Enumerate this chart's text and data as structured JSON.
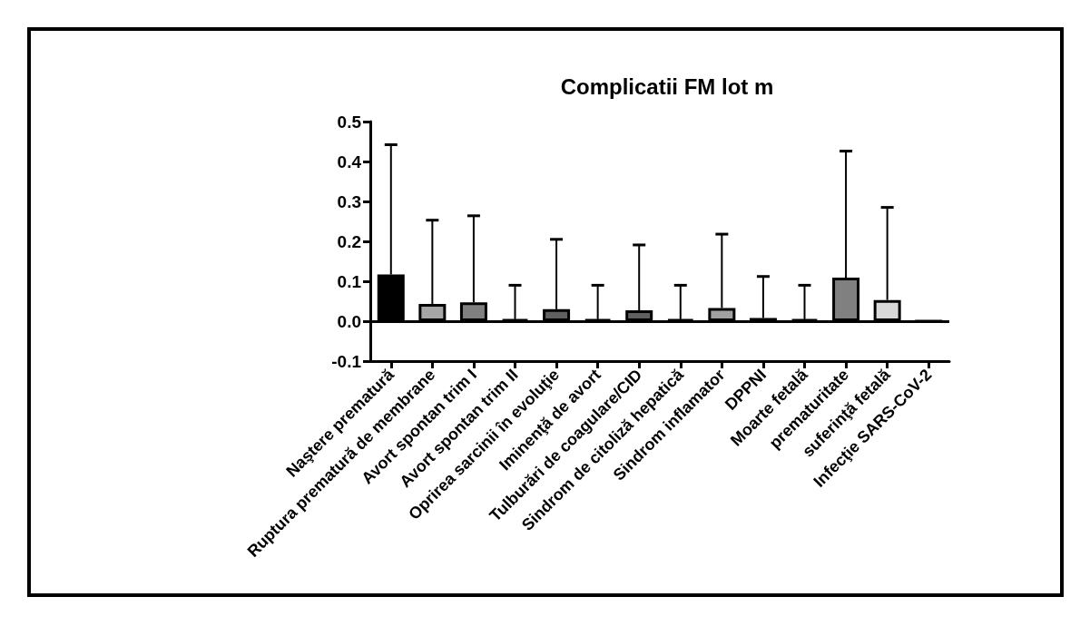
{
  "chart_data": {
    "type": "bar",
    "title": "Complicatii FM lot m",
    "categories": [
      "Naştere prematură",
      "Ruptura prematură de membrane",
      "Avort spontan trim I",
      "Avort spontan trim II",
      "Oprirea sarcinii în evoluţie",
      "Iminenţă de avort",
      "Tulburări de coagulare/CID",
      "Sindrom de citoliză hepatică",
      "Sindrom inflamator",
      "DPPNI",
      "Moarte fetală",
      "prematuritate",
      "suferinţă fetală",
      "Infecţie SARS-CoV-2"
    ],
    "values": [
      0.117,
      0.043,
      0.047,
      0.005,
      0.03,
      0.005,
      0.027,
      0.005,
      0.033,
      0.008,
      0.005,
      0.109,
      0.053,
      0
    ],
    "colors": [
      "#000000",
      "#a6a6a6",
      "#808080",
      "#000000",
      "#606060",
      "#000000",
      "#606060",
      "#000000",
      "#a0a0a0",
      "#000000",
      "#000000",
      "#808080",
      "#d9d9d9",
      "#000000"
    ],
    "errors": [
      [
        0.117,
        0.442
      ],
      [
        0.043,
        0.253
      ],
      [
        0.047,
        0.264
      ],
      [
        0.005,
        0.09
      ],
      [
        0.03,
        0.205
      ],
      [
        0.005,
        0.09
      ],
      [
        0.027,
        0.191
      ],
      [
        0.005,
        0.09
      ],
      [
        0.033,
        0.218
      ],
      [
        0.008,
        0.112
      ],
      [
        0.005,
        0.09
      ],
      [
        0.109,
        0.426
      ],
      [
        0.053,
        0.285
      ],
      null
    ],
    "ylim": [
      -0.1,
      0.5
    ],
    "yticks": [
      {
        "value": -0.1,
        "label": "-0.1"
      },
      {
        "value": 0,
        "label": "0.0"
      },
      0.1,
      0.2,
      0.3,
      0.4,
      0.5
    ],
    "ref_lines": [
      {
        "axis": "y",
        "value": 0,
        "color": "#000000"
      }
    ],
    "grid": false
  }
}
